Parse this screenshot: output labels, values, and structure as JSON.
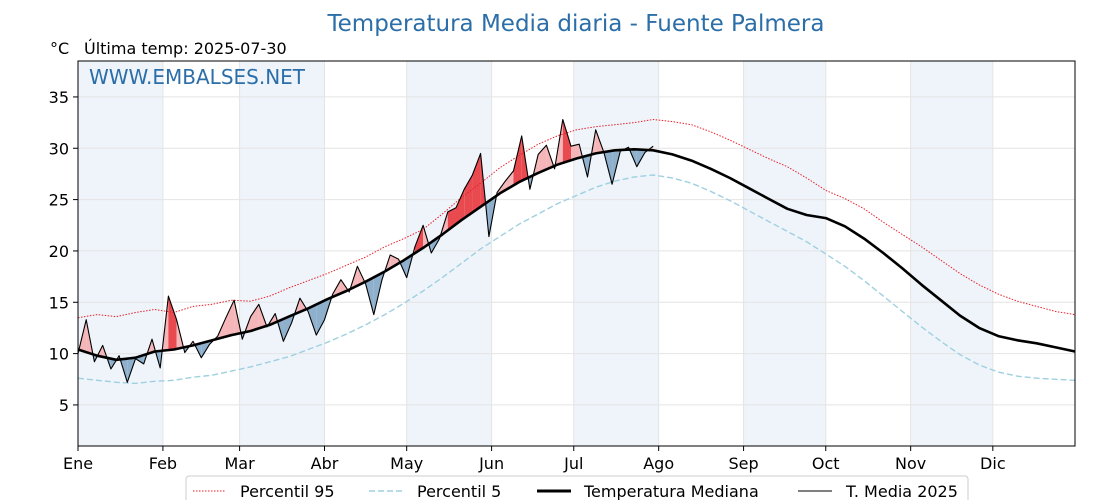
{
  "header": {
    "title": "Temperatura Media diaria - Fuente Palmera",
    "unit": "°C",
    "last_temp": "Última temp: 2025-07-30",
    "watermark": "WWW.EMBALSES.NET"
  },
  "colors": {
    "title": "#2b6ea8",
    "p95": "#e8202a",
    "p5": "#9fd0e0",
    "median": "#000000",
    "current": "#000000",
    "fill_above": "#f4b6b8",
    "fill_above_strong": "#e84a50",
    "fill_below": "#8fb0cc",
    "band": "#eef4fa"
  },
  "chart_data": {
    "type": "line",
    "title": "Temperatura Media diaria - Fuente Palmera",
    "ylabel": "°C",
    "x_unit": "day of year",
    "xlim": [
      1,
      365
    ],
    "ylim": [
      1,
      38.5
    ],
    "yticks": [
      5,
      10,
      15,
      20,
      25,
      30,
      35
    ],
    "months": [
      {
        "label": "Ene",
        "day": 1
      },
      {
        "label": "Feb",
        "day": 32
      },
      {
        "label": "Mar",
        "day": 60
      },
      {
        "label": "Abr",
        "day": 91
      },
      {
        "label": "May",
        "day": 121
      },
      {
        "label": "Jun",
        "day": 152
      },
      {
        "label": "Jul",
        "day": 182
      },
      {
        "label": "Ago",
        "day": 213
      },
      {
        "label": "Sep",
        "day": 244
      },
      {
        "label": "Oct",
        "day": 274
      },
      {
        "label": "Nov",
        "day": 305
      },
      {
        "label": "Dic",
        "day": 335
      }
    ],
    "grid": true,
    "legend_position": "bottom",
    "series": [
      {
        "name": "Percentil 95",
        "style": "dotted-red",
        "x": [
          1,
          8,
          15,
          22,
          29,
          36,
          43,
          50,
          57,
          64,
          71,
          78,
          85,
          92,
          99,
          106,
          113,
          120,
          127,
          134,
          141,
          148,
          155,
          162,
          169,
          176,
          183,
          190,
          197,
          204,
          211,
          218,
          225,
          232,
          239,
          246,
          253,
          260,
          267,
          274,
          281,
          288,
          295,
          302,
          309,
          316,
          323,
          330,
          337,
          344,
          351,
          358,
          365
        ],
        "y": [
          13.5,
          13.8,
          13.6,
          14.0,
          14.3,
          14.0,
          14.6,
          14.8,
          15.2,
          15.1,
          15.6,
          16.4,
          17.1,
          17.8,
          18.6,
          19.4,
          20.4,
          21.2,
          22.1,
          23.6,
          25.2,
          26.6,
          28.1,
          29.3,
          30.4,
          31.2,
          31.8,
          32.1,
          32.3,
          32.5,
          32.8,
          32.6,
          32.3,
          31.6,
          30.8,
          29.9,
          29.0,
          28.2,
          27.1,
          25.9,
          25.1,
          24.1,
          22.8,
          21.6,
          20.4,
          19.1,
          17.8,
          16.7,
          15.8,
          15.1,
          14.6,
          14.1,
          13.8
        ]
      },
      {
        "name": "Percentil 5",
        "style": "dashed-lightblue",
        "x": [
          1,
          8,
          15,
          22,
          29,
          36,
          43,
          50,
          57,
          64,
          71,
          78,
          85,
          92,
          99,
          106,
          113,
          120,
          127,
          134,
          141,
          148,
          155,
          162,
          169,
          176,
          183,
          190,
          197,
          204,
          211,
          218,
          225,
          232,
          239,
          246,
          253,
          260,
          267,
          274,
          281,
          288,
          295,
          302,
          309,
          316,
          323,
          330,
          337,
          344,
          351,
          358,
          365
        ],
        "y": [
          7.6,
          7.4,
          7.2,
          7.1,
          7.3,
          7.4,
          7.7,
          7.9,
          8.3,
          8.7,
          9.2,
          9.7,
          10.4,
          11.1,
          11.9,
          12.8,
          13.8,
          14.9,
          16.1,
          17.4,
          18.8,
          20.2,
          21.4,
          22.6,
          23.6,
          24.6,
          25.4,
          26.2,
          26.8,
          27.2,
          27.4,
          27.1,
          26.6,
          25.8,
          24.9,
          23.9,
          22.9,
          21.9,
          20.9,
          19.7,
          18.5,
          17.1,
          15.6,
          14.1,
          12.6,
          11.2,
          9.9,
          8.9,
          8.2,
          7.8,
          7.6,
          7.5,
          7.4
        ]
      },
      {
        "name": "Temperatura Mediana",
        "style": "thick-black",
        "x": [
          1,
          8,
          15,
          22,
          29,
          36,
          43,
          50,
          57,
          64,
          71,
          78,
          85,
          92,
          99,
          106,
          113,
          120,
          127,
          134,
          141,
          148,
          155,
          162,
          169,
          176,
          183,
          190,
          197,
          204,
          211,
          218,
          225,
          232,
          239,
          246,
          253,
          260,
          267,
          274,
          281,
          288,
          295,
          302,
          309,
          316,
          323,
          330,
          337,
          344,
          351,
          358,
          365
        ],
        "y": [
          10.4,
          9.8,
          9.4,
          9.6,
          10.2,
          10.4,
          10.8,
          11.3,
          11.8,
          12.2,
          12.8,
          13.6,
          14.4,
          15.3,
          16.1,
          17.0,
          18.0,
          19.1,
          20.3,
          21.6,
          23.0,
          24.3,
          25.6,
          26.7,
          27.6,
          28.4,
          29.0,
          29.5,
          29.8,
          29.9,
          29.8,
          29.4,
          28.8,
          28.0,
          27.1,
          26.1,
          25.1,
          24.1,
          23.5,
          23.2,
          22.4,
          21.2,
          19.8,
          18.3,
          16.7,
          15.2,
          13.7,
          12.5,
          11.7,
          11.3,
          11.0,
          10.6,
          10.2
        ]
      },
      {
        "name": "T. Media 2025",
        "style": "thin-black",
        "x": [
          1,
          4,
          7,
          10,
          13,
          16,
          19,
          22,
          25,
          28,
          31,
          34,
          37,
          40,
          43,
          46,
          49,
          52,
          55,
          58,
          61,
          64,
          67,
          70,
          73,
          76,
          79,
          82,
          85,
          88,
          91,
          94,
          97,
          100,
          103,
          106,
          109,
          112,
          115,
          118,
          121,
          124,
          127,
          130,
          133,
          136,
          139,
          142,
          145,
          148,
          151,
          154,
          157,
          160,
          163,
          166,
          169,
          172,
          175,
          178,
          181,
          184,
          187,
          190,
          193,
          196,
          199,
          202,
          205,
          208,
          211
        ],
        "y": [
          10.0,
          13.3,
          9.2,
          10.8,
          8.5,
          9.8,
          7.2,
          9.5,
          9.0,
          11.4,
          8.6,
          15.6,
          13.3,
          10.1,
          11.2,
          9.6,
          10.9,
          11.7,
          13.5,
          15.2,
          11.4,
          13.6,
          14.8,
          12.6,
          13.9,
          11.2,
          13.0,
          15.4,
          14.1,
          11.8,
          13.3,
          15.8,
          17.2,
          16.0,
          18.5,
          16.8,
          13.8,
          17.2,
          19.6,
          19.2,
          17.4,
          20.4,
          22.5,
          19.8,
          21.2,
          23.8,
          24.2,
          26.0,
          27.4,
          29.5,
          21.4,
          25.7,
          26.8,
          27.8,
          31.2,
          26.0,
          29.4,
          30.3,
          28.0,
          32.8,
          30.2,
          30.4,
          27.2,
          31.8,
          29.6,
          26.5,
          29.7,
          30.1,
          28.2,
          29.6,
          30.2
        ]
      }
    ]
  },
  "legend": [
    {
      "label": "Percentil 95",
      "style": "dotted-red"
    },
    {
      "label": "Percentil 5",
      "style": "dashed-lightblue"
    },
    {
      "label": "Temperatura Mediana",
      "style": "thick-black"
    },
    {
      "label": "T. Media 2025",
      "style": "thin-black"
    }
  ]
}
